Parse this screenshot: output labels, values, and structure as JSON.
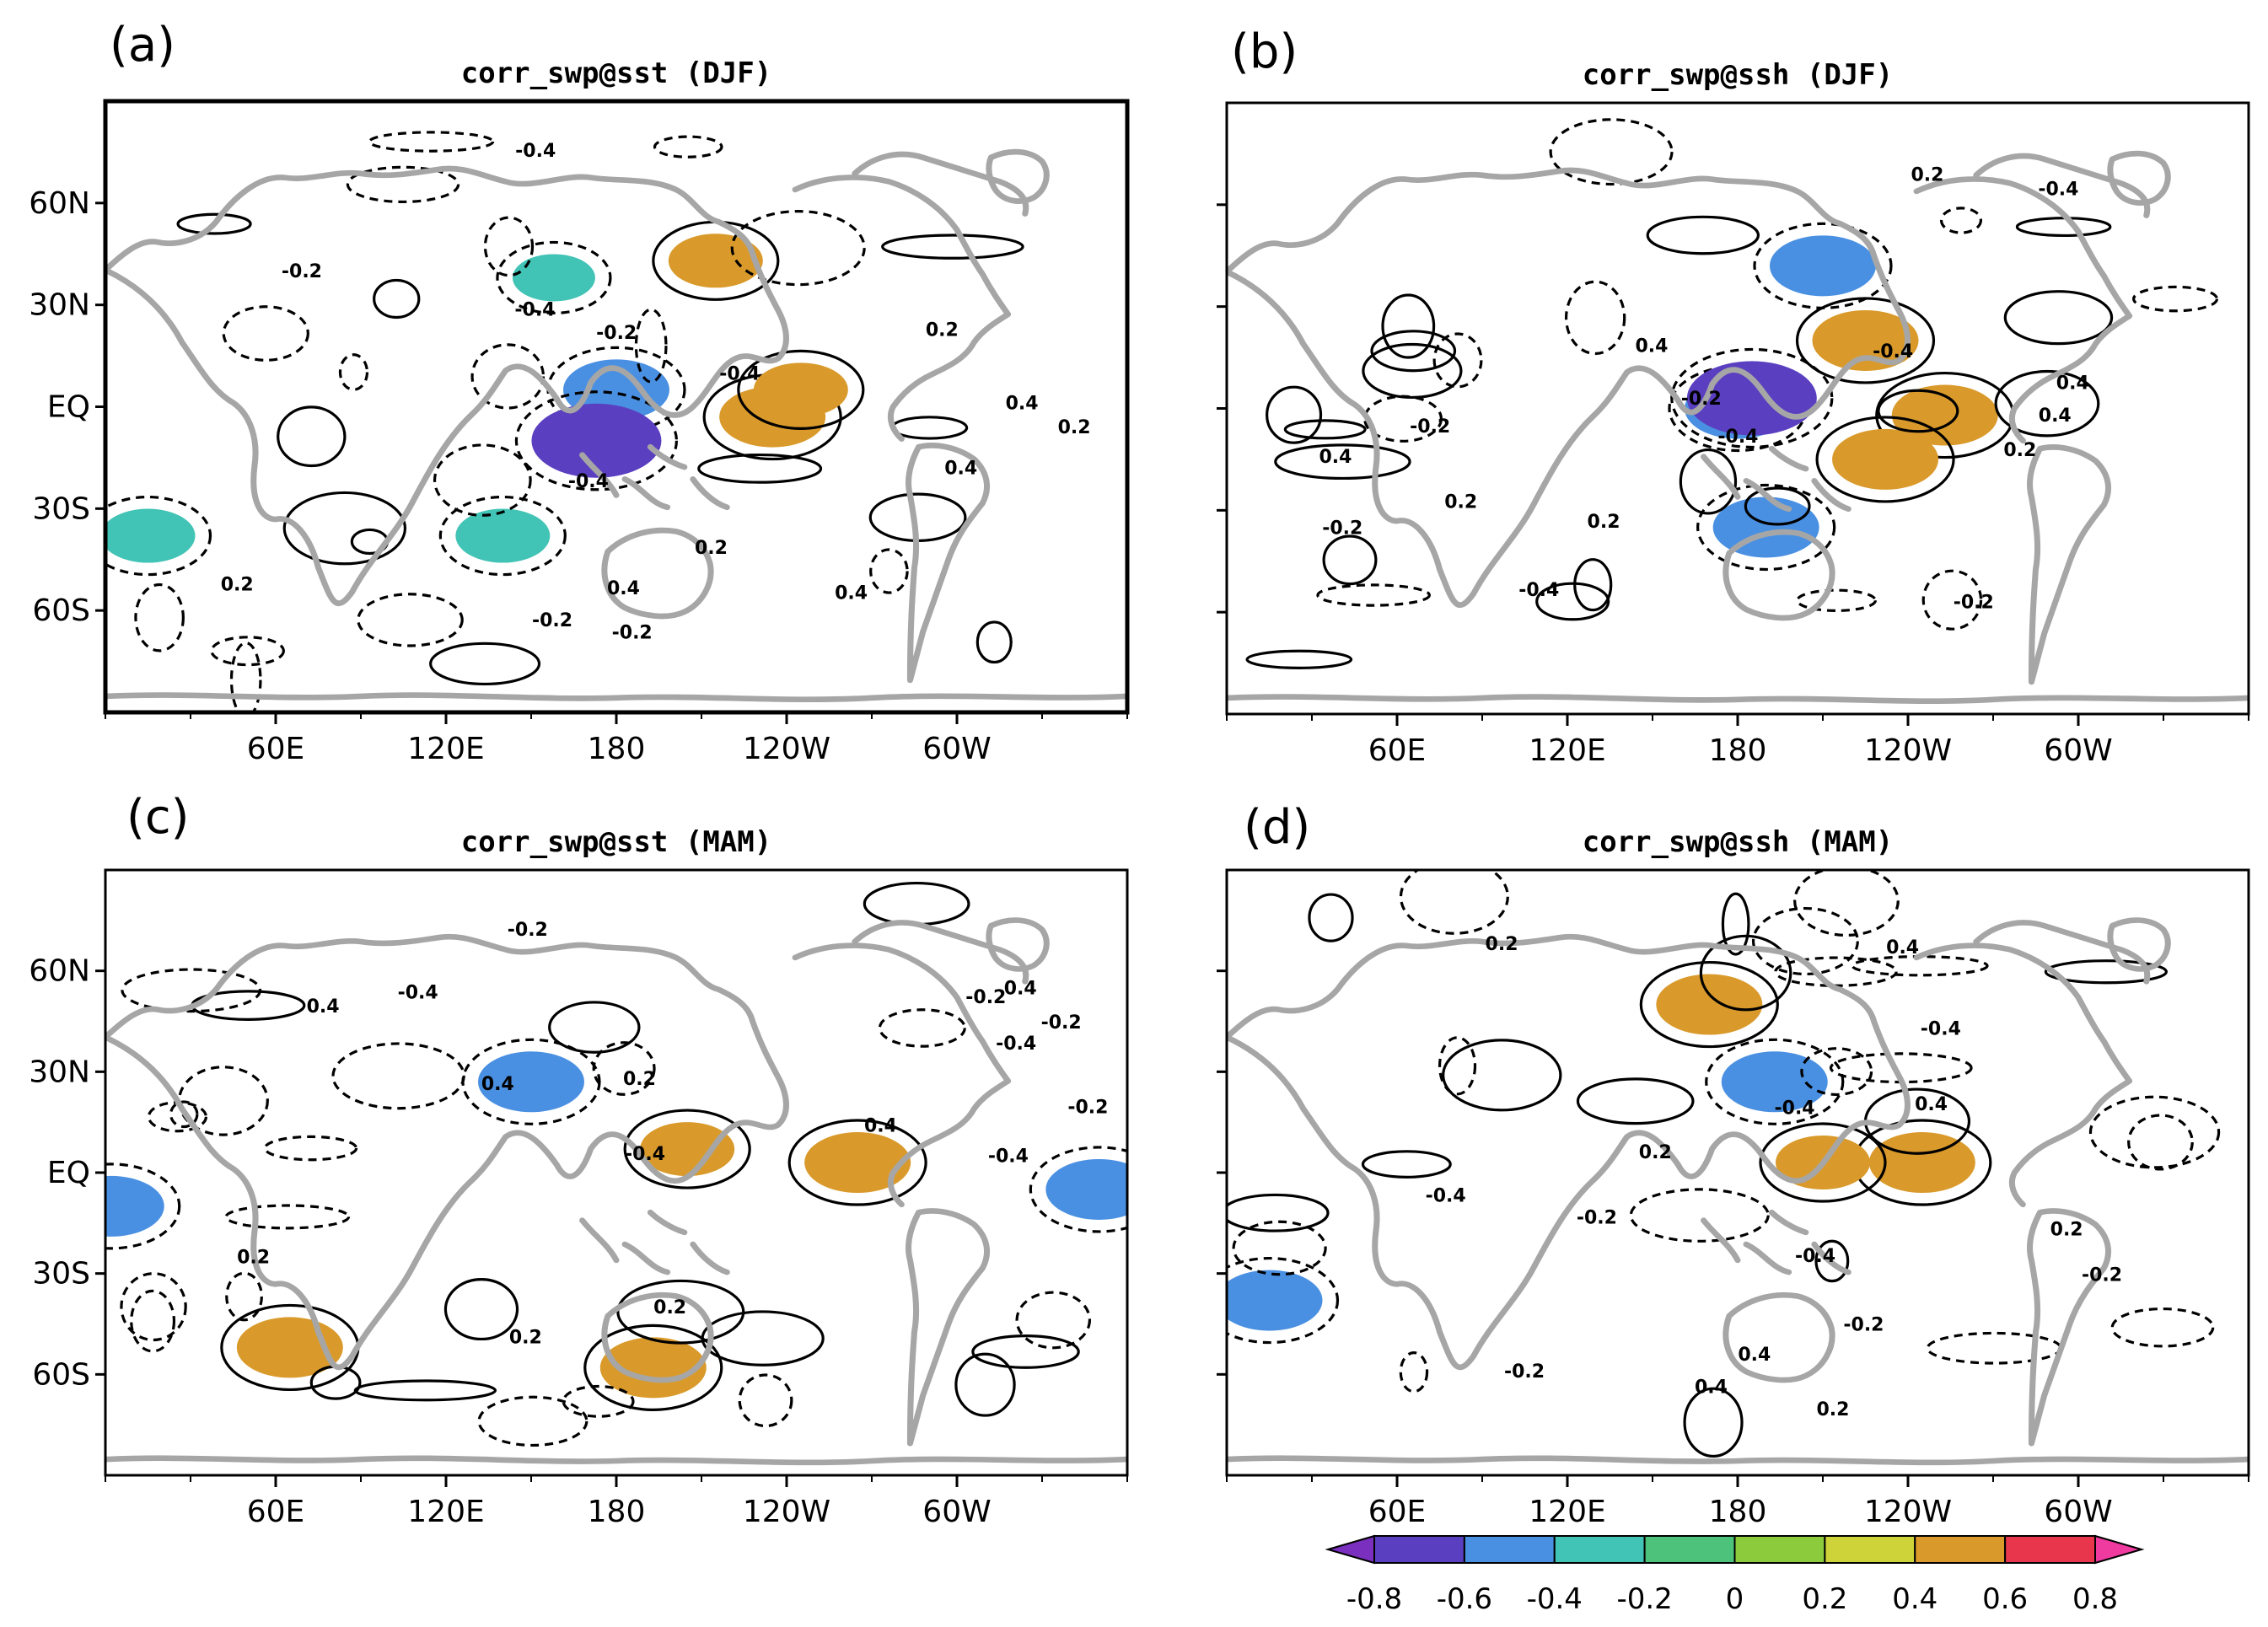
{
  "chart_data": [
    {
      "type": "heatmap",
      "panel_label": "(a)",
      "title": "corr_swp@sst (DJF)",
      "x_ticks": [
        "60E",
        "120E",
        "180",
        "120W",
        "60W"
      ],
      "y_ticks": [
        "60N",
        "30N",
        "EQ",
        "30S",
        "60S"
      ],
      "contour_labels": [
        "-0.2",
        "0.2",
        "-0.4",
        "0.4"
      ],
      "regions": [
        {
          "lon": 180,
          "lat": 5,
          "value": -0.5
        },
        {
          "lon": 173,
          "lat": -10,
          "value": -0.7
        },
        {
          "lon": 235,
          "lat": -3,
          "value": 0.5
        },
        {
          "lon": 245,
          "lat": 5,
          "value": 0.4
        },
        {
          "lon": 215,
          "lat": 43,
          "value": 0.4
        },
        {
          "lon": 158,
          "lat": 38,
          "value": -0.3
        },
        {
          "lon": 15,
          "lat": -38,
          "value": -0.4
        },
        {
          "lon": 140,
          "lat": -38,
          "value": -0.4
        }
      ]
    },
    {
      "type": "heatmap",
      "panel_label": "(b)",
      "title": "corr_swp@ssh (DJF)",
      "x_ticks": [
        "60E",
        "120E",
        "180",
        "120W",
        "60W"
      ],
      "y_ticks": [],
      "contour_labels": [
        "-0.2",
        "0.2",
        "-0.4",
        "0.4"
      ],
      "regions": [
        {
          "lon": 180,
          "lat": 0,
          "value": -0.5
        },
        {
          "lon": 185,
          "lat": 3,
          "value": -0.7
        },
        {
          "lon": 225,
          "lat": 20,
          "value": 0.5
        },
        {
          "lon": 253,
          "lat": -2,
          "value": 0.5
        },
        {
          "lon": 232,
          "lat": -15,
          "value": 0.5
        },
        {
          "lon": 210,
          "lat": 42,
          "value": -0.5
        },
        {
          "lon": 190,
          "lat": -35,
          "value": -0.5
        }
      ]
    },
    {
      "type": "heatmap",
      "panel_label": "(c)",
      "title": "corr_swp@sst (MAM)",
      "x_ticks": [
        "60E",
        "120E",
        "180",
        "120W",
        "60W"
      ],
      "y_ticks": [
        "60N",
        "30N",
        "EQ",
        "30S",
        "60S"
      ],
      "contour_labels": [
        "-0.2",
        "0.2",
        "-0.4",
        "0.4"
      ],
      "regions": [
        {
          "lon": 65,
          "lat": -52,
          "value": 0.5
        },
        {
          "lon": 193,
          "lat": -58,
          "value": 0.5
        },
        {
          "lon": 150,
          "lat": 27,
          "value": -0.5
        },
        {
          "lon": 2,
          "lat": -10,
          "value": -0.5
        },
        {
          "lon": 350,
          "lat": -5,
          "value": -0.5
        },
        {
          "lon": 205,
          "lat": 7,
          "value": 0.4
        },
        {
          "lon": 265,
          "lat": 3,
          "value": 0.5
        }
      ]
    },
    {
      "type": "heatmap",
      "panel_label": "(d)",
      "title": "corr_swp@ssh (MAM)",
      "x_ticks": [
        "60E",
        "120E",
        "180",
        "120W",
        "60W"
      ],
      "y_ticks": [],
      "contour_labels": [
        "-0.2",
        "0.2",
        "-0.4",
        "0.4"
      ],
      "regions": [
        {
          "lon": 245,
          "lat": 3,
          "value": 0.5
        },
        {
          "lon": 210,
          "lat": 3,
          "value": 0.4
        },
        {
          "lon": 170,
          "lat": 50,
          "value": 0.5
        },
        {
          "lon": 193,
          "lat": 27,
          "value": -0.5
        },
        {
          "lon": 15,
          "lat": -38,
          "value": -0.5
        }
      ]
    }
  ],
  "colorbar": {
    "tick_labels": [
      "-0.8",
      "-0.6",
      "-0.4",
      "-0.2",
      "0",
      "0.2",
      "0.4",
      "0.6",
      "0.8"
    ],
    "colors": [
      "#7b2fbe",
      "#5a3fc0",
      "#4a90e2",
      "#41c3b5",
      "#4cc27a",
      "#8ccc3c",
      "#cfd33a",
      "#d99a2b",
      "#e8364d",
      "#ef3aa0"
    ]
  }
}
